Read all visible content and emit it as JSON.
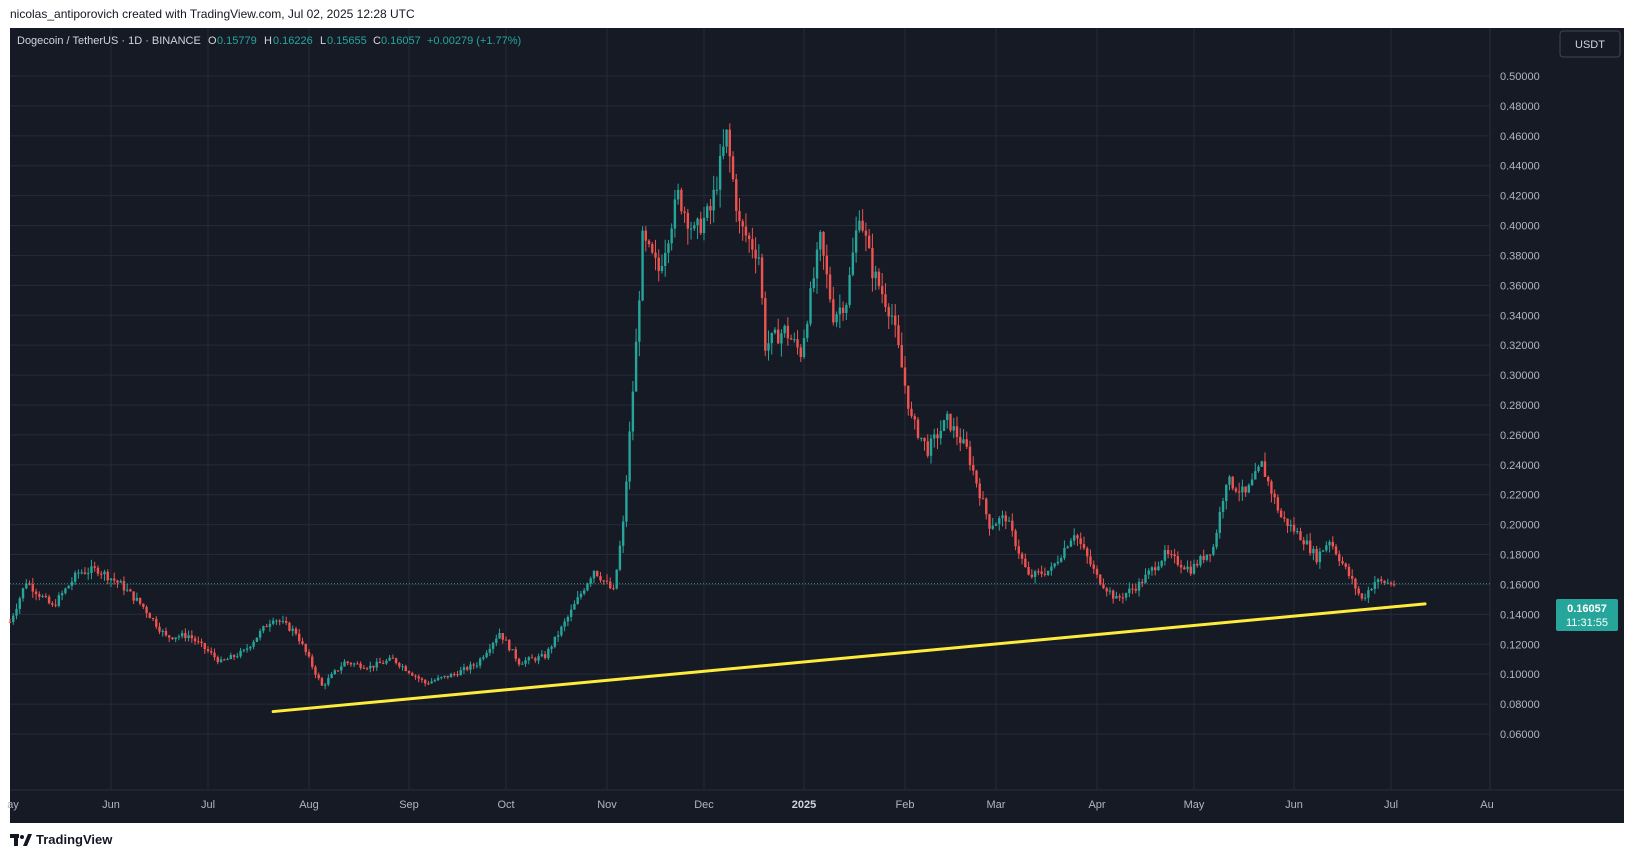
{
  "header": {
    "author": "nicolas_antiporovich created with TradingView.com, Jul 02, 2025 12:28 UTC"
  },
  "legend": {
    "symbol": "Dogecoin / TetherUS · 1D · BINANCE",
    "open_label": "O",
    "open": "0.15779",
    "high_label": "H",
    "high": "0.16226",
    "low_label": "L",
    "low": "0.15655",
    "close_label": "C",
    "close": "0.16057",
    "change": "+0.00279 (+1.77%)"
  },
  "currency_button": "USDT",
  "last_price": {
    "value": "0.16057",
    "countdown": "11:31:55"
  },
  "footer": {
    "brand": "TradingView"
  },
  "colors": {
    "background": "#161a25",
    "grid": "#242a38",
    "text": "#b2b5be",
    "up": "#26a69a",
    "down": "#ef5350",
    "trendline": "#ffeb3b"
  },
  "chart_data": {
    "type": "candlestick",
    "symbol": "DOGE/USDT",
    "interval": "1D",
    "ylim": [
      0.04,
      0.51
    ],
    "yticks": [
      "0.50000",
      "0.48000",
      "0.46000",
      "0.44000",
      "0.42000",
      "0.40000",
      "0.38000",
      "0.36000",
      "0.34000",
      "0.32000",
      "0.30000",
      "0.28000",
      "0.26000",
      "0.24000",
      "0.22000",
      "0.20000",
      "0.18000",
      "0.16000",
      "0.14000",
      "0.12000",
      "0.10000",
      "0.08000",
      "0.06000"
    ],
    "xticks": [
      "ay",
      "Jun",
      "Jul",
      "Aug",
      "Sep",
      "Oct",
      "Nov",
      "Dec",
      "2025",
      "Feb",
      "Mar",
      "Apr",
      "May",
      "Jun",
      "Jul",
      "Au"
    ],
    "approx_close_path": [
      {
        "date": "2024-05-01",
        "close": 0.135
      },
      {
        "date": "2024-05-06",
        "close": 0.162
      },
      {
        "date": "2024-05-14",
        "close": 0.145
      },
      {
        "date": "2024-05-22",
        "close": 0.168
      },
      {
        "date": "2024-05-28",
        "close": 0.17
      },
      {
        "date": "2024-06-04",
        "close": 0.16
      },
      {
        "date": "2024-06-11",
        "close": 0.145
      },
      {
        "date": "2024-06-18",
        "close": 0.125
      },
      {
        "date": "2024-06-25",
        "close": 0.126
      },
      {
        "date": "2024-07-05",
        "close": 0.108
      },
      {
        "date": "2024-07-12",
        "close": 0.115
      },
      {
        "date": "2024-07-21",
        "close": 0.138
      },
      {
        "date": "2024-07-28",
        "close": 0.128
      },
      {
        "date": "2024-08-05",
        "close": 0.092
      },
      {
        "date": "2024-08-12",
        "close": 0.108
      },
      {
        "date": "2024-08-20",
        "close": 0.105
      },
      {
        "date": "2024-08-27",
        "close": 0.11
      },
      {
        "date": "2024-09-06",
        "close": 0.094
      },
      {
        "date": "2024-09-15",
        "close": 0.1
      },
      {
        "date": "2024-09-22",
        "close": 0.107
      },
      {
        "date": "2024-09-29",
        "close": 0.128
      },
      {
        "date": "2024-10-05",
        "close": 0.108
      },
      {
        "date": "2024-10-13",
        "close": 0.112
      },
      {
        "date": "2024-10-20",
        "close": 0.138
      },
      {
        "date": "2024-10-28",
        "close": 0.17
      },
      {
        "date": "2024-11-03",
        "close": 0.155
      },
      {
        "date": "2024-11-06",
        "close": 0.2
      },
      {
        "date": "2024-11-10",
        "close": 0.32
      },
      {
        "date": "2024-11-12",
        "close": 0.39
      },
      {
        "date": "2024-11-17",
        "close": 0.37
      },
      {
        "date": "2024-11-23",
        "close": 0.42
      },
      {
        "date": "2024-11-28",
        "close": 0.395
      },
      {
        "date": "2024-12-03",
        "close": 0.41
      },
      {
        "date": "2024-12-08",
        "close": 0.46
      },
      {
        "date": "2024-12-12",
        "close": 0.4
      },
      {
        "date": "2024-12-18",
        "close": 0.38
      },
      {
        "date": "2024-12-20",
        "close": 0.32
      },
      {
        "date": "2024-12-26",
        "close": 0.33
      },
      {
        "date": "2024-12-31",
        "close": 0.315
      },
      {
        "date": "2025-01-06",
        "close": 0.39
      },
      {
        "date": "2025-01-10",
        "close": 0.34
      },
      {
        "date": "2025-01-14",
        "close": 0.35
      },
      {
        "date": "2025-01-18",
        "close": 0.41
      },
      {
        "date": "2025-01-22",
        "close": 0.37
      },
      {
        "date": "2025-01-28",
        "close": 0.34
      },
      {
        "date": "2025-02-03",
        "close": 0.27
      },
      {
        "date": "2025-02-08",
        "close": 0.25
      },
      {
        "date": "2025-02-14",
        "close": 0.27
      },
      {
        "date": "2025-02-20",
        "close": 0.25
      },
      {
        "date": "2025-02-27",
        "close": 0.2
      },
      {
        "date": "2025-03-04",
        "close": 0.205
      },
      {
        "date": "2025-03-11",
        "close": 0.165
      },
      {
        "date": "2025-03-18",
        "close": 0.17
      },
      {
        "date": "2025-03-25",
        "close": 0.195
      },
      {
        "date": "2025-04-01",
        "close": 0.165
      },
      {
        "date": "2025-04-07",
        "close": 0.15
      },
      {
        "date": "2025-04-14",
        "close": 0.16
      },
      {
        "date": "2025-04-22",
        "close": 0.18
      },
      {
        "date": "2025-04-30",
        "close": 0.17
      },
      {
        "date": "2025-05-07",
        "close": 0.185
      },
      {
        "date": "2025-05-11",
        "close": 0.23
      },
      {
        "date": "2025-05-17",
        "close": 0.22
      },
      {
        "date": "2025-05-22",
        "close": 0.24
      },
      {
        "date": "2025-05-28",
        "close": 0.205
      },
      {
        "date": "2025-06-04",
        "close": 0.19
      },
      {
        "date": "2025-06-08",
        "close": 0.178
      },
      {
        "date": "2025-06-12",
        "close": 0.19
      },
      {
        "date": "2025-06-17",
        "close": 0.17
      },
      {
        "date": "2025-06-22",
        "close": 0.15
      },
      {
        "date": "2025-06-26",
        "close": 0.162
      },
      {
        "date": "2025-07-02",
        "close": 0.16057
      }
    ],
    "trendline": [
      {
        "date": "2024-07-21",
        "value": 0.075
      },
      {
        "date": "2025-07-12",
        "value": 0.147
      }
    ]
  }
}
